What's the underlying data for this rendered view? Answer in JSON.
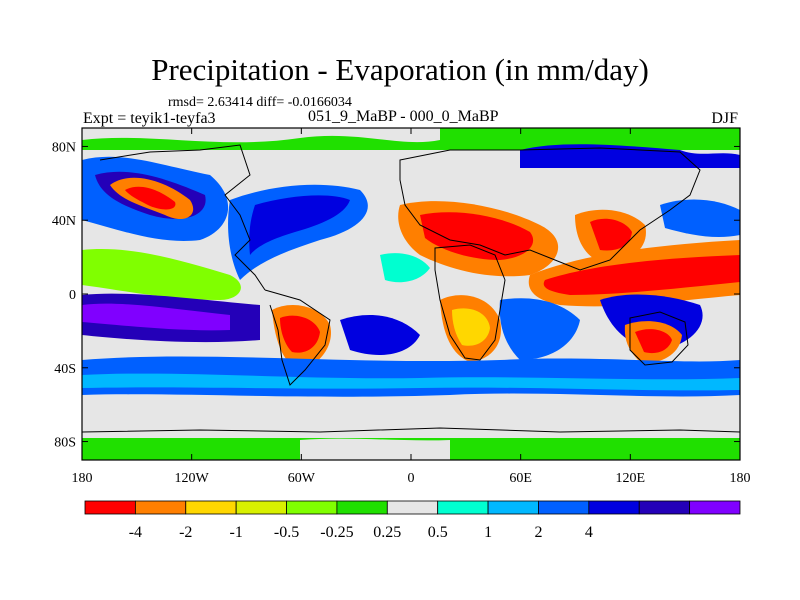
{
  "header": {
    "title": "Precipitation - Evaporation (in mm/day)",
    "stats": "rmsd= 2.63414 diff= -0.0166034",
    "experiment": "Expt = teyik1-teyfa3",
    "period": "051_9_MaBP - 000_0_MaBP",
    "season": "DJF"
  },
  "map": {
    "lon_ticks": [
      "180",
      "120W",
      "60W",
      "0",
      "60E",
      "120E",
      "180"
    ],
    "lat_ticks": [
      "80N",
      "40N",
      "0",
      "40S",
      "80S"
    ]
  },
  "colorbar": {
    "colors": [
      "#ff0000",
      "#ff7f00",
      "#ffd700",
      "#d8f000",
      "#80ff00",
      "#20e000",
      "#e6e6e6",
      "#00ffd0",
      "#00b8ff",
      "#0060ff",
      "#0000e0",
      "#2400b8",
      "#8000ff"
    ],
    "labels": [
      "-4",
      "-2",
      "-1",
      "-0.5",
      "-0.25",
      "0.25",
      "0.5",
      "1",
      "2",
      "4"
    ]
  }
}
